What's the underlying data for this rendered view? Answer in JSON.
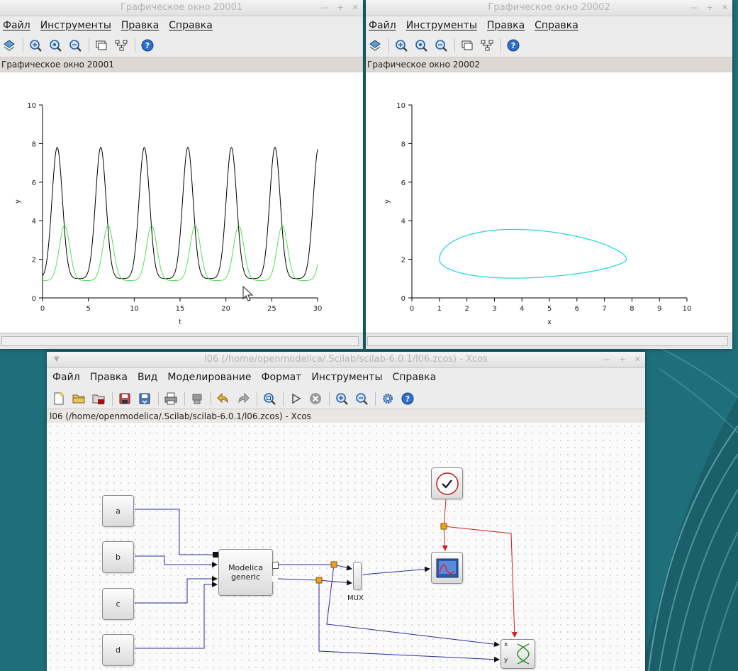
{
  "desktop": {
    "accent": "#1b6e78"
  },
  "window1": {
    "title": "Графическое окно 20001",
    "menu": [
      "Файл",
      "Инструменты",
      "Правка",
      "Справка"
    ],
    "toolbar_icons": [
      "rotate-icon",
      "zoom-in-icon",
      "zoom-fit-icon",
      "zoom-out-icon",
      "datatip-icon",
      "edit-icon",
      "help-icon"
    ],
    "info_text": "Графическое окно 20001"
  },
  "window2": {
    "title": "Графическое окно 20002",
    "menu": [
      "Файл",
      "Инструменты",
      "Правка",
      "Справка"
    ],
    "toolbar_icons": [
      "rotate-icon",
      "zoom-in-icon",
      "zoom-fit-icon",
      "zoom-out-icon",
      "datatip-icon",
      "edit-icon",
      "help-icon"
    ],
    "info_text": "Графическое окно 20002"
  },
  "chart_data": [
    {
      "type": "line",
      "xlabel": "t",
      "ylabel": "y",
      "xlim": [
        0,
        30
      ],
      "ylim": [
        0,
        10
      ],
      "x_ticks": [
        0,
        5,
        10,
        15,
        20,
        25,
        30
      ],
      "y_ticks": [
        0,
        2,
        4,
        6,
        8,
        10
      ],
      "grid": false,
      "series": [
        {
          "color": "#000000",
          "period": 4.75,
          "min": 1.0,
          "max": 7.8,
          "value_at_0": 2.2,
          "first_peak_t": 1.6
        },
        {
          "color": "#55e055",
          "period": 4.75,
          "min": 0.9,
          "max": 3.75,
          "value_at_0": 1.0,
          "first_peak_t": 2.4
        }
      ]
    },
    {
      "type": "line",
      "xlabel": "x",
      "ylabel": "y",
      "xlim": [
        0,
        10
      ],
      "ylim": [
        0,
        10
      ],
      "x_ticks": [
        0,
        1,
        2,
        3,
        4,
        5,
        6,
        7,
        8,
        9,
        10
      ],
      "y_ticks": [
        0,
        2,
        4,
        6,
        8,
        10
      ],
      "grid": false,
      "series": [
        {
          "color": "#2ad6e0",
          "x_range": [
            1.0,
            7.8
          ],
          "y_range": [
            0.9,
            3.75
          ],
          "x_at_y_max": 3.6,
          "y_at_x_max": 2.0
        }
      ]
    }
  ],
  "xcos": {
    "title": "l06 (/home/openmodelica/.Scilab/scilab-6.0.1/l06.zcos) - Xcos",
    "menu": [
      "Файл",
      "Правка",
      "Вид",
      "Моделирование",
      "Формат",
      "Инструменты",
      "Справка"
    ],
    "toolbar_icons": [
      "new-icon",
      "open-icon",
      "open-in-scilab-icon",
      "save-icon",
      "save-as-icon",
      "print-icon",
      "export-icon",
      "undo-icon",
      "redo-icon",
      "fit-diagram-icon",
      "start-icon",
      "stop-icon",
      "zoom-in-icon",
      "zoom-out-icon",
      "setup-icon",
      "help-icon"
    ],
    "info_text": "l06 (/home/openmodelica/.Scilab/scilab-6.0.1/l06.zcos) - Xcos",
    "blocks": {
      "a": "a",
      "b": "b",
      "c": "c",
      "d": "d",
      "modelica_line1": "Modelica",
      "modelica_line2": "generic",
      "mux": "MUX",
      "xy_in_x": "x",
      "xy_in_y": "y"
    },
    "link_colors": {
      "data": "#2b2ba0",
      "event": "#d02020"
    }
  }
}
